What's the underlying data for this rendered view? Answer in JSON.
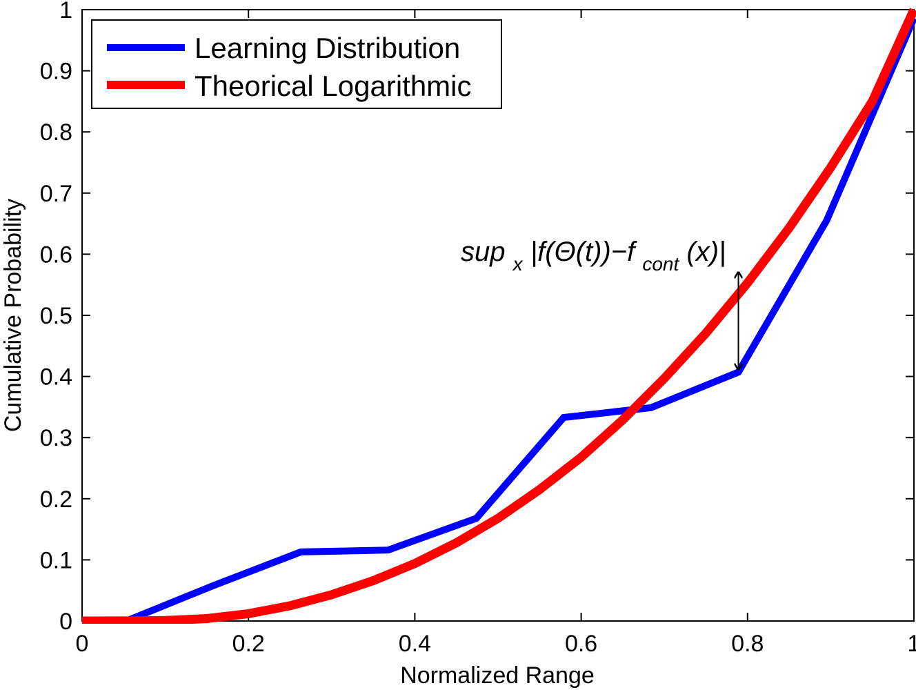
{
  "chart_data": {
    "type": "line",
    "xlabel": "Normalized Range",
    "ylabel": "Cumulative Probability",
    "xlim": [
      0,
      1
    ],
    "ylim": [
      0,
      1
    ],
    "xticks": [
      "0",
      "0.2",
      "0.4",
      "0.6",
      "0.8",
      "1"
    ],
    "yticks": [
      "0",
      "0.1",
      "0.2",
      "0.3",
      "0.4",
      "0.5",
      "0.6",
      "0.7",
      "0.8",
      "0.9",
      "1"
    ],
    "grid": false,
    "legend_position": "top-left",
    "series": [
      {
        "name": "Learning Distribution",
        "color": "#0000ff",
        "x": [
          0,
          0.053,
          0.158,
          0.263,
          0.368,
          0.474,
          0.579,
          0.684,
          0.789,
          0.895,
          1.0
        ],
        "y": [
          0,
          0,
          0.058,
          0.113,
          0.116,
          0.168,
          0.333,
          0.349,
          0.407,
          0.655,
          0.986
        ]
      },
      {
        "name": "Theorical Logarithmic",
        "color": "#ff0000",
        "x": [
          0,
          0.05,
          0.1,
          0.15,
          0.2,
          0.25,
          0.3,
          0.35,
          0.4,
          0.45,
          0.5,
          0.55,
          0.6,
          0.65,
          0.7,
          0.75,
          0.8,
          0.85,
          0.9,
          0.95,
          1.0
        ],
        "y": [
          0,
          0.0001,
          0.0008,
          0.004,
          0.012,
          0.025,
          0.043,
          0.066,
          0.094,
          0.128,
          0.168,
          0.215,
          0.268,
          0.329,
          0.397,
          0.471,
          0.553,
          0.643,
          0.742,
          0.85,
          1.0
        ]
      }
    ],
    "annotation": {
      "sup": "sup",
      "sup_sub": "x",
      "expr_a": " |f(Θ(t))−f",
      "expr_sub": "cont",
      "expr_b": "(x)|",
      "arrow_x": 0.789,
      "arrow_y_from": 0.407,
      "arrow_y_to": 0.575
    }
  }
}
